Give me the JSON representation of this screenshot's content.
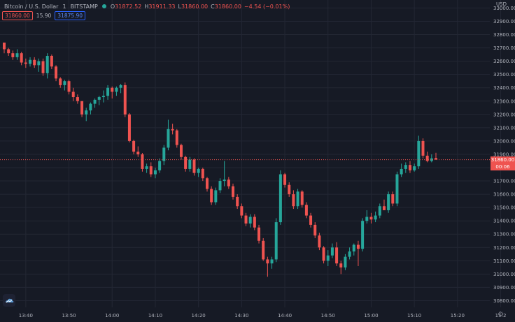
{
  "header": {
    "symbol": "Bitcoin / U.S. Dollar",
    "interval": "1",
    "exchange": "BITSTAMP",
    "ohlc": [
      {
        "k": "O",
        "v": "31872.52"
      },
      {
        "k": "H",
        "v": "31911.33"
      },
      {
        "k": "L",
        "v": "31860.00"
      },
      {
        "k": "C",
        "v": "31860.00"
      },
      {
        "k": "",
        "v": "−4.54 (−0.01%)"
      }
    ]
  },
  "order_boxes": {
    "sell": "31860.00",
    "spread": "15.90",
    "buy": "31875.90"
  },
  "price_scale": {
    "currency": "USD",
    "last_price": "31860.00",
    "countdown": "00:06",
    "partial_label": "31"
  },
  "colors": {
    "up": "#26a69a",
    "down": "#ef5350",
    "background": "#161a25",
    "grid": "#232734",
    "text": "#b2b5be"
  },
  "chart_data": {
    "type": "candlestick",
    "y_ticks": [
      30800,
      30900,
      31000,
      31100,
      31200,
      31300,
      31400,
      31500,
      31600,
      31700,
      31800,
      31900,
      32000,
      32100,
      32200,
      32300,
      32400,
      32500,
      32600,
      32700,
      32800,
      32900,
      33000
    ],
    "y_tick_labels": [
      "30800.00",
      "30900.00",
      "31000.00",
      "31100.00",
      "31200.00",
      "31300.00",
      "31400.00",
      "31500.00",
      "31600.00",
      "31700.00",
      "31800.00",
      "31900.00",
      "32000.00",
      "32100.00",
      "32200.00",
      "32300.00",
      "32400.00",
      "32500.00",
      "32600.00",
      "32700.00",
      "32800.00",
      "32900.00",
      "33000.00"
    ],
    "x_ticks": [
      "13:40",
      "13:50",
      "14:00",
      "14:10",
      "14:20",
      "14:30",
      "14:40",
      "14:50",
      "15:00",
      "15:10",
      "15:20",
      "15:2"
    ],
    "ylim": [
      30750,
      33060
    ],
    "start_time": "13:35",
    "candles": [
      [
        32740,
        32740,
        32660,
        32690
      ],
      [
        32690,
        32700,
        32640,
        32660
      ],
      [
        32660,
        32680,
        32610,
        32630
      ],
      [
        32630,
        32690,
        32610,
        32660
      ],
      [
        32660,
        32670,
        32570,
        32590
      ],
      [
        32590,
        32620,
        32550,
        32580
      ],
      [
        32580,
        32630,
        32560,
        32610
      ],
      [
        32610,
        32630,
        32550,
        32570
      ],
      [
        32570,
        32620,
        32520,
        32600
      ],
      [
        32600,
        32620,
        32490,
        32510
      ],
      [
        32510,
        32660,
        32470,
        32640
      ],
      [
        32640,
        32650,
        32540,
        32560
      ],
      [
        32560,
        32570,
        32450,
        32470
      ],
      [
        32470,
        32480,
        32400,
        32420
      ],
      [
        32420,
        32460,
        32380,
        32450
      ],
      [
        32450,
        32460,
        32350,
        32370
      ],
      [
        32370,
        32400,
        32300,
        32330
      ],
      [
        32330,
        32350,
        32280,
        32300
      ],
      [
        32300,
        32300,
        32180,
        32200
      ],
      [
        32200,
        32250,
        32150,
        32230
      ],
      [
        32230,
        32290,
        32200,
        32280
      ],
      [
        32280,
        32320,
        32250,
        32310
      ],
      [
        32310,
        32340,
        32270,
        32330
      ],
      [
        32330,
        32380,
        32290,
        32340
      ],
      [
        32340,
        32420,
        32310,
        32400
      ],
      [
        32400,
        32410,
        32320,
        32370
      ],
      [
        32370,
        32410,
        32340,
        32400
      ],
      [
        32400,
        32430,
        32360,
        32420
      ],
      [
        32420,
        32440,
        32180,
        32200
      ],
      [
        32200,
        32210,
        31990,
        32000
      ],
      [
        32000,
        32010,
        31900,
        31920
      ],
      [
        31920,
        31960,
        31880,
        31900
      ],
      [
        31900,
        31910,
        31770,
        31790
      ],
      [
        31790,
        31830,
        31760,
        31810
      ],
      [
        31810,
        31840,
        31730,
        31750
      ],
      [
        31750,
        31800,
        31720,
        31780
      ],
      [
        31780,
        31870,
        31760,
        31850
      ],
      [
        31850,
        31970,
        31820,
        31950
      ],
      [
        31950,
        32160,
        31930,
        32090
      ],
      [
        32090,
        32130,
        32050,
        32080
      ],
      [
        32080,
        32090,
        31950,
        31970
      ],
      [
        31970,
        31980,
        31860,
        31880
      ],
      [
        31880,
        31890,
        31770,
        31790
      ],
      [
        31790,
        31880,
        31770,
        31860
      ],
      [
        31860,
        31870,
        31740,
        31760
      ],
      [
        31760,
        31800,
        31730,
        31790
      ],
      [
        31790,
        31800,
        31700,
        31720
      ],
      [
        31720,
        31730,
        31620,
        31640
      ],
      [
        31640,
        31660,
        31520,
        31540
      ],
      [
        31540,
        31650,
        31520,
        31630
      ],
      [
        31630,
        31720,
        31610,
        31700
      ],
      [
        31700,
        31850,
        31660,
        31710
      ],
      [
        31710,
        31730,
        31640,
        31660
      ],
      [
        31660,
        31680,
        31560,
        31580
      ],
      [
        31580,
        31600,
        31490,
        31510
      ],
      [
        31510,
        31530,
        31420,
        31440
      ],
      [
        31440,
        31460,
        31360,
        31380
      ],
      [
        31380,
        31450,
        31350,
        31430
      ],
      [
        31430,
        31450,
        31330,
        31350
      ],
      [
        31350,
        31370,
        31230,
        31250
      ],
      [
        31250,
        31270,
        31100,
        31110
      ],
      [
        31110,
        31130,
        30980,
        31080
      ],
      [
        31080,
        31130,
        31040,
        31110
      ],
      [
        31110,
        31420,
        31090,
        31390
      ],
      [
        31390,
        31780,
        31370,
        31750
      ],
      [
        31750,
        31760,
        31650,
        31670
      ],
      [
        31670,
        31690,
        31580,
        31600
      ],
      [
        31600,
        31630,
        31490,
        31510
      ],
      [
        31510,
        31640,
        31490,
        31620
      ],
      [
        31620,
        31630,
        31500,
        31520
      ],
      [
        31520,
        31540,
        31420,
        31440
      ],
      [
        31440,
        31460,
        31350,
        31370
      ],
      [
        31370,
        31390,
        31270,
        31290
      ],
      [
        31290,
        31310,
        31180,
        31200
      ],
      [
        31200,
        31210,
        31080,
        31100
      ],
      [
        31100,
        31180,
        31060,
        31140
      ],
      [
        31140,
        31230,
        31120,
        31200
      ],
      [
        31200,
        31240,
        31060,
        31080
      ],
      [
        31080,
        31100,
        31000,
        31050
      ],
      [
        31050,
        31150,
        31030,
        31130
      ],
      [
        31130,
        31200,
        31110,
        31170
      ],
      [
        31170,
        31230,
        31140,
        31220
      ],
      [
        31220,
        31250,
        31060,
        31190
      ],
      [
        31190,
        31420,
        31170,
        31400
      ],
      [
        31400,
        31480,
        31380,
        31430
      ],
      [
        31430,
        31460,
        31380,
        31410
      ],
      [
        31410,
        31470,
        31390,
        31440
      ],
      [
        31440,
        31530,
        31420,
        31510
      ],
      [
        31510,
        31560,
        31480,
        31480
      ],
      [
        31480,
        31620,
        31460,
        31600
      ],
      [
        31600,
        31620,
        31510,
        31530
      ],
      [
        31530,
        31770,
        31510,
        31750
      ],
      [
        31750,
        31830,
        31730,
        31790
      ],
      [
        31790,
        31840,
        31760,
        31820
      ],
      [
        31820,
        31850,
        31760,
        31780
      ],
      [
        31780,
        31830,
        31770,
        31810
      ],
      [
        31810,
        32040,
        31790,
        32000
      ],
      [
        32000,
        32020,
        31870,
        31890
      ],
      [
        31890,
        31920,
        31840,
        31850
      ],
      [
        31850,
        31900,
        31840,
        31870
      ],
      [
        31872.52,
        31911.33,
        31860,
        31860
      ]
    ]
  }
}
